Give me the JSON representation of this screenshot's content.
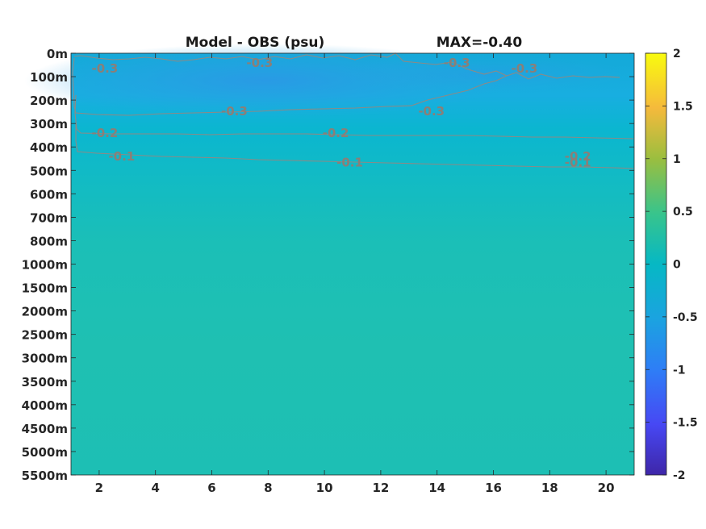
{
  "chart_data": {
    "type": "heatmap",
    "title": "Model - OBS (psu)",
    "annotation": "MAX=-0.40",
    "xlabel": "",
    "ylabel": "",
    "x_ticks": [
      2,
      4,
      6,
      8,
      10,
      12,
      14,
      16,
      18,
      20
    ],
    "xlim": [
      1,
      21
    ],
    "y_ticks": [
      "0m",
      "100m",
      "200m",
      "300m",
      "400m",
      "500m",
      "600m",
      "700m",
      "800m",
      "1000m",
      "1500m",
      "2000m",
      "2500m",
      "3000m",
      "3500m",
      "4000m",
      "4500m",
      "5000m",
      "5500m"
    ],
    "colorbar": {
      "range": [
        -2,
        2
      ],
      "ticks": [
        "2",
        "1.5",
        "1",
        "0.5",
        "0",
        "-0.5",
        "-1",
        "-1.5",
        "-2"
      ],
      "colormap": "parula"
    },
    "contours": [
      {
        "level": -0.3,
        "labels": [
          {
            "text": "-0.3",
            "x": 2.2,
            "depth": "100m"
          },
          {
            "text": "-0.3",
            "x": 7.7,
            "depth": "0m"
          },
          {
            "text": "-0.3",
            "x": 14.7,
            "depth": "0m"
          },
          {
            "text": "-0.3",
            "x": 6.8,
            "depth": "200m"
          },
          {
            "text": "-0.3",
            "x": 13.8,
            "depth": "200m"
          },
          {
            "text": "-0.3",
            "x": 17.1,
            "depth": "100m"
          }
        ]
      },
      {
        "level": -0.2,
        "labels": [
          {
            "text": "-0.2",
            "x": 2.2,
            "depth": "300m"
          },
          {
            "text": "-0.2",
            "x": 10.4,
            "depth": "300m"
          },
          {
            "text": "-0.2",
            "x": 19.0,
            "depth": "400m"
          }
        ]
      },
      {
        "level": -0.1,
        "labels": [
          {
            "text": "-0.1",
            "x": 2.8,
            "depth": "400m"
          },
          {
            "text": "-0.1",
            "x": 10.9,
            "depth": "500m"
          },
          {
            "text": "-0.1",
            "x": 19.0,
            "depth": "500m"
          }
        ]
      }
    ]
  }
}
